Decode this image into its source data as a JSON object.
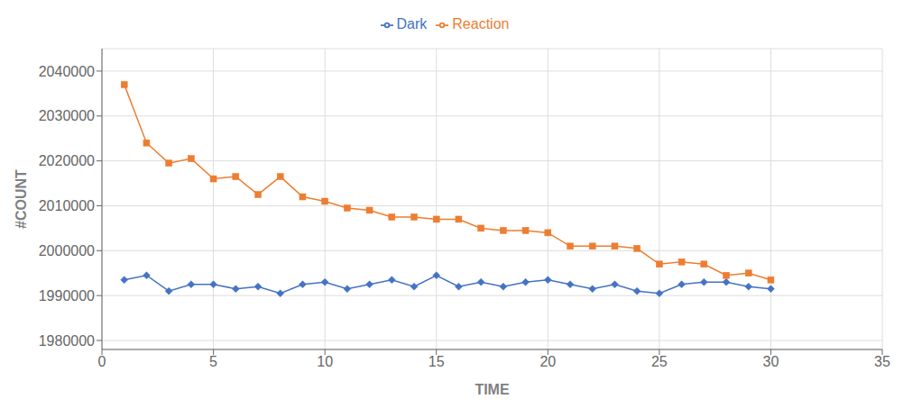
{
  "chart_data": {
    "type": "line",
    "x": [
      1,
      2,
      3,
      4,
      5,
      6,
      7,
      8,
      9,
      10,
      11,
      12,
      13,
      14,
      15,
      16,
      17,
      18,
      19,
      20,
      21,
      22,
      23,
      24,
      25,
      26,
      27,
      28,
      29,
      30
    ],
    "series": [
      {
        "name": "Dark",
        "color": "#4472C4",
        "marker": "diamond",
        "values": [
          1993500,
          1994500,
          1991000,
          1992500,
          1992500,
          1991500,
          1992000,
          1990500,
          1992500,
          1993000,
          1991500,
          1992500,
          1993500,
          1992000,
          1994500,
          1992000,
          1993000,
          1992000,
          1993000,
          1993500,
          1992500,
          1991500,
          1992500,
          1991000,
          1990500,
          1992500,
          1993000,
          1993000,
          1992000,
          1991500
        ]
      },
      {
        "name": "Reaction",
        "color": "#ED7D31",
        "marker": "square",
        "values": [
          2037000,
          2024000,
          2019500,
          2020500,
          2016000,
          2016500,
          2012500,
          2016500,
          2012000,
          2011000,
          2009500,
          2009000,
          2007500,
          2007500,
          2007000,
          2007000,
          2005000,
          2004500,
          2004500,
          2004000,
          2001000,
          2001000,
          2001000,
          2000500,
          1997000,
          1997500,
          1997000,
          1994500,
          1995000,
          1993500
        ]
      }
    ],
    "xlabel": "TIME",
    "ylabel": "#COUNT",
    "xlim": [
      0,
      35
    ],
    "ylim": [
      1978000,
      2045000
    ],
    "xticks": [
      0,
      5,
      10,
      15,
      20,
      25,
      30,
      35
    ],
    "yticks": [
      1980000,
      1990000,
      2000000,
      2010000,
      2020000,
      2030000,
      2040000
    ],
    "grid": true,
    "legend": "top"
  }
}
